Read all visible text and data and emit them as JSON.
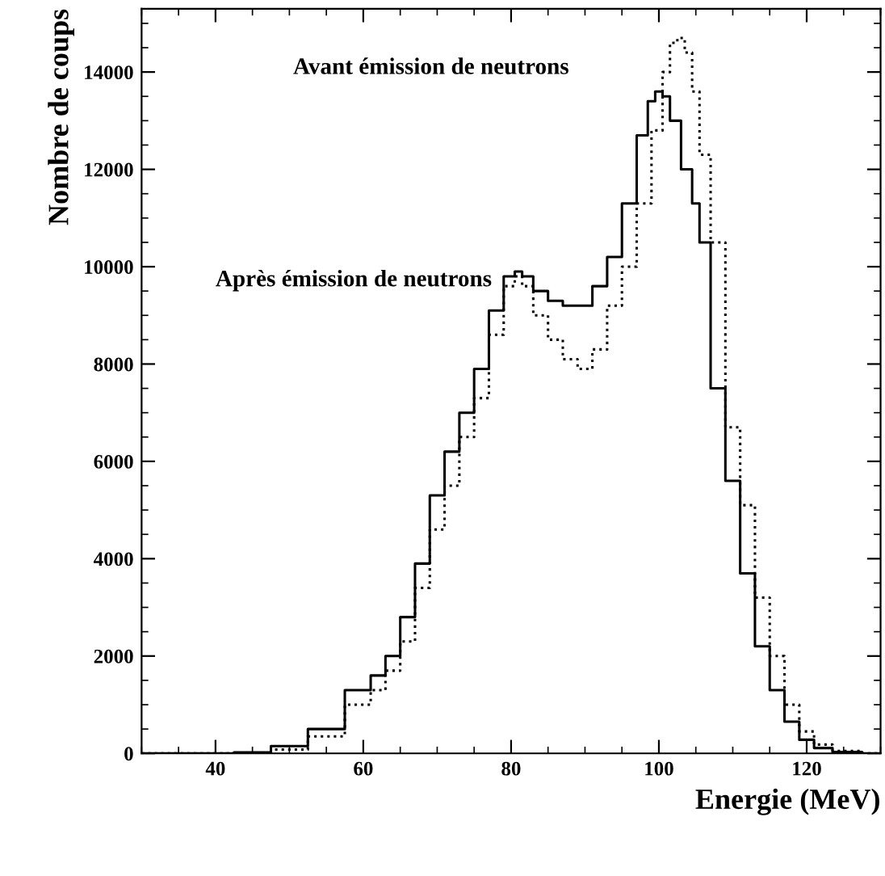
{
  "chart_data": {
    "type": "step",
    "xlabel": "Energie (MeV)",
    "ylabel": "Nombre de coups",
    "xlim": [
      30,
      130
    ],
    "ylim": [
      0,
      15300
    ],
    "xticks": [
      40,
      60,
      80,
      100,
      120
    ],
    "yticks": [
      0,
      2000,
      4000,
      6000,
      8000,
      10000,
      12000,
      14000
    ],
    "grid": false,
    "legend": false,
    "series": [
      {
        "color": "#000000",
        "line_style": "solid",
        "x": [
          30,
          40,
          45,
          50,
          55,
          60,
          62,
          64,
          66,
          68,
          70,
          72,
          74,
          76,
          78,
          80,
          81,
          82,
          84,
          86,
          88,
          90,
          92,
          94,
          96,
          98,
          99,
          100,
          101,
          102,
          104,
          105,
          106,
          108,
          110,
          112,
          114,
          116,
          118,
          120,
          122,
          125,
          130
        ],
        "values": [
          0,
          0,
          20,
          150,
          500,
          1300,
          1600,
          2000,
          2800,
          3900,
          5300,
          6200,
          7000,
          7900,
          9100,
          9800,
          9900,
          9800,
          9500,
          9300,
          9200,
          9200,
          9600,
          10200,
          11300,
          12700,
          13400,
          13600,
          13500,
          13000,
          12000,
          11300,
          10500,
          7500,
          5600,
          3700,
          2200,
          1300,
          650,
          280,
          110,
          30,
          0
        ]
      },
      {
        "color": "#000000",
        "line_style": "dotted",
        "x": [
          30,
          40,
          45,
          50,
          55,
          60,
          62,
          64,
          66,
          68,
          70,
          72,
          74,
          76,
          78,
          80,
          81,
          82,
          84,
          86,
          88,
          90,
          92,
          94,
          96,
          98,
          100,
          101,
          102,
          103,
          104,
          105,
          106,
          108,
          110,
          112,
          114,
          116,
          118,
          120,
          122,
          125,
          130
        ],
        "values": [
          0,
          0,
          10,
          80,
          350,
          1000,
          1300,
          1700,
          2300,
          3400,
          4600,
          5500,
          6500,
          7300,
          8600,
          9600,
          9800,
          9600,
          9000,
          8500,
          8100,
          7900,
          8300,
          9200,
          10000,
          11300,
          12800,
          14000,
          14600,
          14700,
          14400,
          13600,
          12300,
          10500,
          6700,
          5100,
          3200,
          2000,
          1000,
          450,
          180,
          50,
          0
        ]
      }
    ],
    "annotations": [
      "Avant émission de neutrons",
      "Après émission de neutrons"
    ]
  }
}
